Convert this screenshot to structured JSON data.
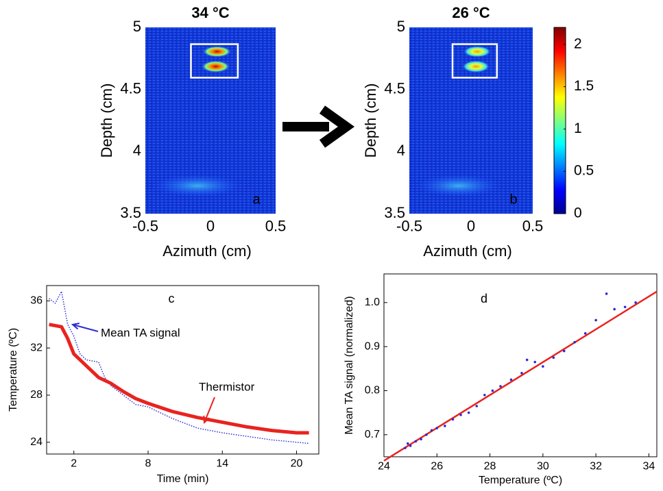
{
  "chart_data": [
    {
      "type": "heatmap",
      "title": "34 °C",
      "title_color": "#e8231f",
      "panel_label": "a",
      "xlabel": "Azimuth (cm)",
      "ylabel": "Depth (cm)",
      "xlim": [
        -0.5,
        0.5
      ],
      "xticks": [
        -0.5,
        0,
        0.5
      ],
      "ylim": [
        3.5,
        5
      ],
      "yticks": [
        3.5,
        4,
        4.5,
        5
      ]
    },
    {
      "type": "heatmap",
      "title": "26 °C",
      "title_color": "#3b6ba5",
      "panel_label": "b",
      "xlabel": "Azimuth (cm)",
      "ylabel": "Depth (cm)",
      "xlim": [
        -0.5,
        0.5
      ],
      "xticks": [
        -0.5,
        0,
        0.5
      ],
      "ylim": [
        3.5,
        5
      ],
      "yticks": [
        3.5,
        4,
        4.5,
        5
      ]
    },
    {
      "type": "colorbar",
      "ylim": [
        0,
        2.2
      ],
      "yticks": [
        0,
        0.5,
        1,
        1.5,
        2
      ]
    },
    {
      "type": "line",
      "panel_label": "c",
      "xlabel": "Time (min)",
      "ylabel": "Temperature (ºC)",
      "xlim": [
        -0.2,
        21.8
      ],
      "xticks": [
        2,
        8,
        14,
        20
      ],
      "ylim": [
        23,
        37.3
      ],
      "yticks": [
        24,
        28,
        32,
        36
      ],
      "series": [
        {
          "name": "Mean TA signal",
          "color": "#2b2bd6",
          "x": [
            0,
            0.5,
            1,
            1.5,
            2,
            2.5,
            3,
            4,
            4.5,
            5,
            6,
            7,
            8,
            10,
            12,
            14,
            16,
            18,
            20,
            21
          ],
          "values": [
            36.2,
            35.8,
            36.8,
            34,
            33,
            31.5,
            31,
            30.8,
            29.5,
            28.8,
            28,
            27.2,
            27,
            26,
            25.2,
            24.8,
            24.5,
            24.2,
            24,
            23.9
          ]
        },
        {
          "name": "Thermistor",
          "color": "#e8231f",
          "x": [
            0,
            1,
            1.5,
            2,
            3,
            4,
            5,
            6,
            7,
            8,
            10,
            12,
            14,
            16,
            18,
            20,
            21
          ],
          "values": [
            34,
            33.8,
            32.8,
            31.5,
            30.5,
            29.5,
            29,
            28.3,
            27.7,
            27.3,
            26.6,
            26.1,
            25.7,
            25.3,
            25,
            24.8,
            24.8
          ]
        }
      ]
    },
    {
      "type": "scatter",
      "panel_label": "d",
      "xlabel": "Temperature (ºC)",
      "ylabel": "Mean TA signal (normalized)",
      "xlim": [
        24,
        34.3
      ],
      "xticks": [
        24,
        26,
        28,
        30,
        32,
        34
      ],
      "ylim": [
        0.65,
        1.065
      ],
      "yticks": [
        0.7,
        0.8,
        0.9,
        {
          "value": 1,
          "label": "1.0"
        }
      ],
      "color": "#2b2bd6",
      "x": [
        24.8,
        24.9,
        25.0,
        25.2,
        25.4,
        25.6,
        25.8,
        26.0,
        26.3,
        26.6,
        26.9,
        27.2,
        27.5,
        27.8,
        28.1,
        28.4,
        28.8,
        29.2,
        29.4,
        29.7,
        30.0,
        30.4,
        30.8,
        31.2,
        31.6,
        32.0,
        32.4,
        32.7,
        33.1,
        33.5
      ],
      "values": [
        0.67,
        0.68,
        0.675,
        0.685,
        0.69,
        0.7,
        0.71,
        0.715,
        0.72,
        0.735,
        0.745,
        0.75,
        0.765,
        0.79,
        0.8,
        0.81,
        0.825,
        0.84,
        0.87,
        0.865,
        0.855,
        0.875,
        0.89,
        0.91,
        0.93,
        0.96,
        1.02,
        0.985,
        0.99,
        1.0
      ],
      "fit": {
        "color": "#e8231f",
        "x": [
          24,
          34.3
        ],
        "values": [
          0.641,
          1.025
        ]
      }
    }
  ]
}
